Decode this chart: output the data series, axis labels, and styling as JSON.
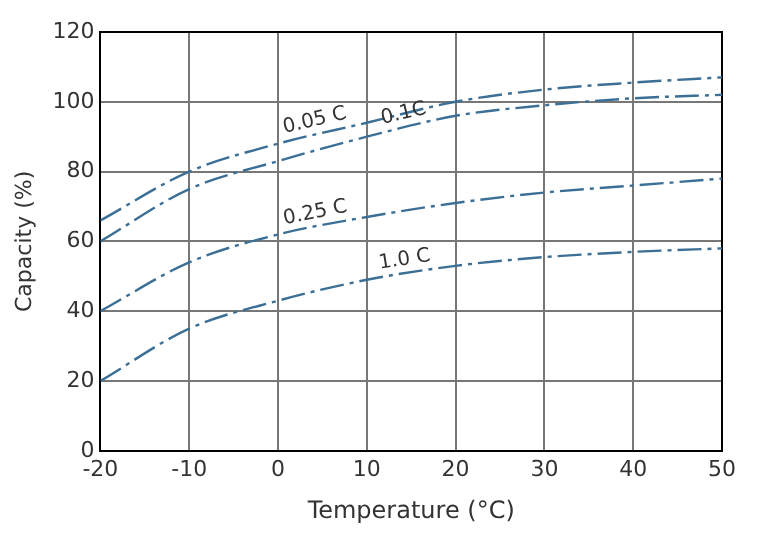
{
  "chart_data": {
    "type": "line",
    "xlabel": "Temperature (°C)",
    "ylabel": "Capacity (%)",
    "x": [
      -20,
      -10,
      0,
      10,
      20,
      30,
      40,
      50
    ],
    "series": [
      {
        "name": "0.05 C",
        "color": "#3c6f96",
        "values": [
          66,
          80,
          88,
          94,
          100,
          103.5,
          105.5,
          107
        ]
      },
      {
        "name": "0.1C",
        "color": "#3c6f96",
        "values": [
          60,
          75,
          83,
          90,
          96,
          99,
          101,
          102
        ]
      },
      {
        "name": "0.25 C",
        "color": "#3c6f96",
        "values": [
          40,
          54,
          62,
          67,
          71,
          74,
          76,
          78
        ]
      },
      {
        "name": "1.0 C",
        "color": "#3c6f96",
        "values": [
          20,
          35,
          43,
          49,
          53,
          55.5,
          57,
          58
        ]
      }
    ],
    "xlim": [
      -20,
      50
    ],
    "xticks": [
      -20,
      -10,
      0,
      10,
      20,
      30,
      40,
      50
    ],
    "ylim": [
      0,
      120
    ],
    "yticks": [
      0,
      20,
      40,
      60,
      80,
      100,
      120
    ],
    "grid": true,
    "legend": false,
    "marker": "none",
    "line_style": "dashed"
  }
}
